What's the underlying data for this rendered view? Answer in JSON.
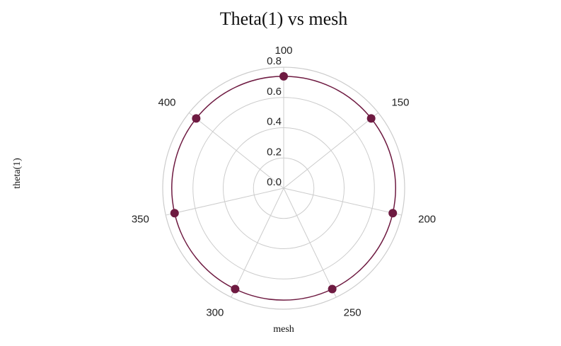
{
  "chart_data": {
    "type": "radar",
    "title": "Theta(1) vs mesh",
    "xlabel": "mesh",
    "ylabel": "theta(1)",
    "categories": [
      "100",
      "150",
      "200",
      "250",
      "300",
      "350",
      "400"
    ],
    "series": [
      {
        "values": [
          0.74,
          0.74,
          0.74,
          0.74,
          0.74,
          0.74,
          0.74
        ]
      }
    ],
    "radial_ticks": [
      "0.0",
      "0.2",
      "0.4",
      "0.6",
      "0.8"
    ],
    "radial_range": [
      0,
      0.8
    ],
    "grid": true,
    "legend": "none",
    "colors": {
      "series": "#6e1a41",
      "grid": "#cccccc",
      "text": "#222222"
    }
  }
}
